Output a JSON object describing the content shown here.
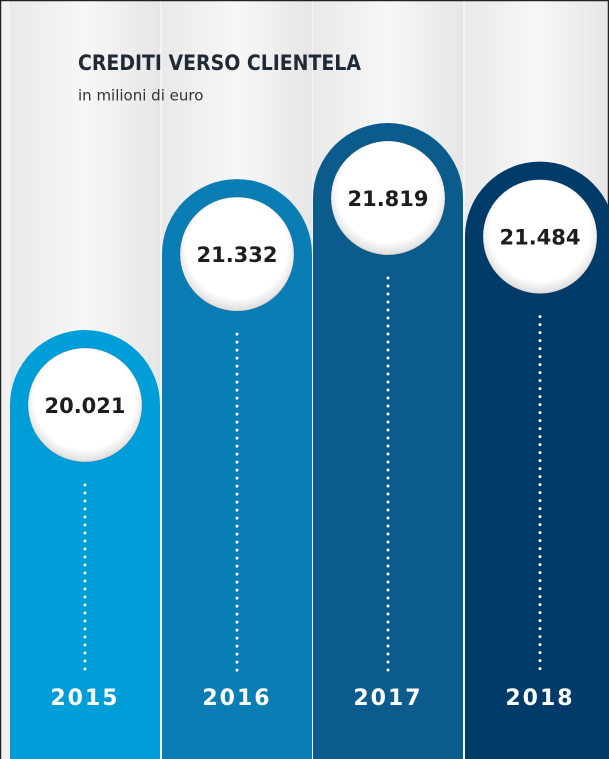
{
  "chart_data": {
    "type": "bar",
    "title": "CREDITI VERSO CLIENTELA",
    "subtitle": "in milioni di euro",
    "categories": [
      "2015",
      "2016",
      "2017",
      "2018"
    ],
    "values": [
      20021,
      21332,
      21819,
      21484
    ],
    "value_labels": [
      "20.021",
      "21.332",
      "21.819",
      "21.484"
    ],
    "colors": [
      "#009ed8",
      "#0a7db5",
      "#0b5b8d",
      "#013b69"
    ]
  }
}
